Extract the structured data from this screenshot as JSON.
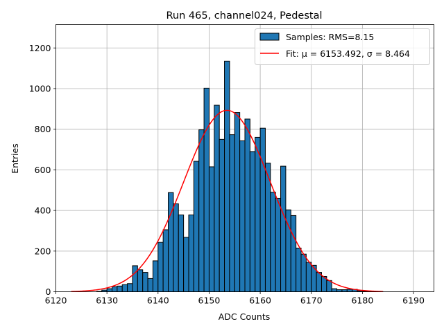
{
  "chart_data": {
    "type": "bar",
    "title": "Run 465, channel024, Pedestal",
    "xlabel": "ADC Counts",
    "ylabel": "Entries",
    "xlim": [
      6120,
      6194
    ],
    "ylim": [
      0,
      1315
    ],
    "xticks": [
      6120,
      6130,
      6140,
      6150,
      6160,
      6170,
      6180,
      6190
    ],
    "yticks": [
      0,
      200,
      400,
      600,
      800,
      1000,
      1200
    ],
    "grid": true,
    "legend_placement": "top-right",
    "bin_width": 1,
    "histogram": {
      "name": "Samples: RMS=8.15",
      "color": "#1f77b4",
      "edge_color": "#000000",
      "bin_left_edges": [
        6123,
        6124,
        6125,
        6126,
        6127,
        6128,
        6129,
        6130,
        6131,
        6132,
        6133,
        6134,
        6135,
        6136,
        6137,
        6138,
        6139,
        6140,
        6141,
        6142,
        6143,
        6144,
        6145,
        6146,
        6147,
        6148,
        6149,
        6150,
        6151,
        6152,
        6153,
        6154,
        6155,
        6156,
        6157,
        6158,
        6159,
        6160,
        6161,
        6162,
        6163,
        6164,
        6165,
        6166,
        6167,
        6168,
        6169,
        6170,
        6171,
        6172,
        6173,
        6174,
        6175,
        6176,
        6177,
        6178,
        6179,
        6180,
        6181,
        6182,
        6183,
        6184
      ],
      "counts": [
        0,
        0,
        0,
        0,
        0,
        2,
        8,
        15,
        25,
        28,
        35,
        40,
        128,
        108,
        95,
        65,
        152,
        243,
        305,
        488,
        433,
        378,
        268,
        378,
        642,
        797,
        1002,
        615,
        918,
        750,
        1135,
        773,
        882,
        743,
        850,
        690,
        760,
        805,
        633,
        490,
        460,
        618,
        403,
        375,
        215,
        185,
        145,
        130,
        95,
        75,
        55,
        15,
        10,
        10,
        12,
        12,
        5,
        3,
        2,
        1,
        1,
        0
      ]
    },
    "fit": {
      "name": "Fit: μ = 6153.492, σ = 8.464",
      "color": "#ff0000",
      "mu": 6153.492,
      "sigma": 8.464,
      "peak": 893,
      "x_range": [
        6123,
        6184
      ]
    }
  }
}
